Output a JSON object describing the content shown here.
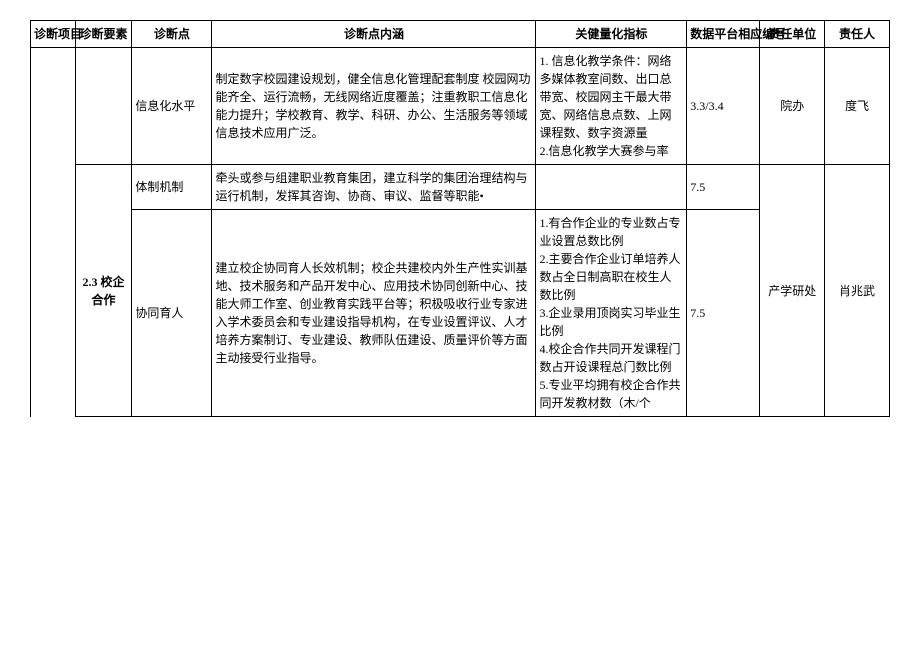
{
  "headers": {
    "h1": "诊断项目",
    "h2": "珍断要素",
    "h3": "诊断点",
    "h4": "诊断点内涵",
    "h5": "关健量化指标",
    "h6": "数据平台相应编号",
    "h7": "责任单位",
    "h8": "责任人"
  },
  "row1": {
    "point": "信息化水平",
    "content": "制定数字校园建设规划，健全信息化管理配套制度 校园网功能齐全、运行流畅，无线网络近度覆盖；注重教职工信息化能力提升；学校教育、教学、科研、办公、生活服务等领域信息技术应用广泛。",
    "indicator": "1. 信息化教学条件：网络多媒体教室间数、出口总带宽、校园网主干最大带宽、网络信息点数、上网课程数、数字资源量\n2.信息化教学大赛参与率",
    "number": "3.3/3.4",
    "unit": "院办",
    "person": "度飞"
  },
  "section": {
    "element": "2.3 校企合作",
    "unit": "产学研处",
    "person": "肖兆武"
  },
  "row2": {
    "point": "体制机制",
    "content": "牵头或参与组建职业教育集团，建立科学的集团治理结构与运行机制，发挥其咨询、协商、审议、监督等职能•",
    "indicator": "",
    "number": "7.5"
  },
  "row3": {
    "point": "协同育人",
    "content": "建立校企协同育人长效机制；校企共建校内外生产性实训基地、技术服务和产品开发中心、应用技术协同创新中心、技能大师工作室、创业教育实践平台等；积极吸收行业专家进入学术委员会和专业建设指导机构，在专业设置评议、人才培养方案制订、专业建设、教师队伍建设、质量评价等方面主动接受行业指导。",
    "indicator": "1.有合作企业的专业数占专业设置总数比例\n2.主要合作企业订单培养人数占全日制高职在校生人数比例\n3.企业录用顶岗实习毕业生比例\n4.校企合作共同开发课程门数占开设课程总门数比例\n5.专业平均拥有校企合作共同开发教材数（木/个",
    "number": "7.5"
  }
}
